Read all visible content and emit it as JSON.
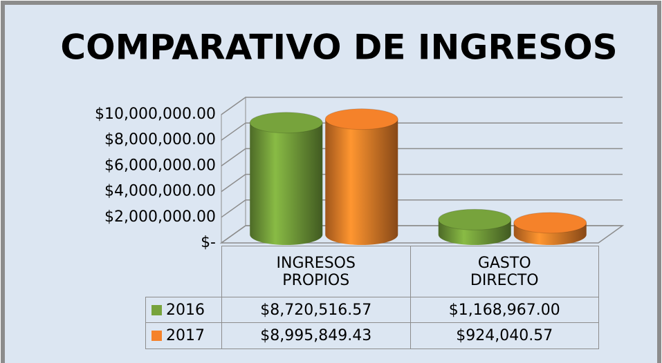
{
  "chart_data": {
    "type": "bar3d",
    "title": "COMPARATIVO DE INGRESOS",
    "categories": [
      "INGRESOS PROPIOS",
      "GASTO DIRECTO"
    ],
    "series": [
      {
        "name": "2016",
        "color": "#77a33c",
        "values": [
          8720516.57,
          1168967.0
        ],
        "value_labels": [
          "$8,720,516.57",
          "$1,168,967.00"
        ]
      },
      {
        "name": "2017",
        "color": "#f5822a",
        "values": [
          8995849.43,
          924040.57
        ],
        "value_labels": [
          "$8,995,849.43",
          "$924,040.57"
        ]
      }
    ],
    "ylim": [
      0,
      10000000
    ],
    "yticks": [
      {
        "value": 0,
        "label": "$-"
      },
      {
        "value": 2000000,
        "label": "$2,000,000.00"
      },
      {
        "value": 4000000,
        "label": "$4,000,000.00"
      },
      {
        "value": 6000000,
        "label": "$6,000,000.00"
      },
      {
        "value": 8000000,
        "label": "$8,000,000.00"
      },
      {
        "value": 10000000,
        "label": "$10,000,000.00"
      }
    ],
    "grid": true
  }
}
